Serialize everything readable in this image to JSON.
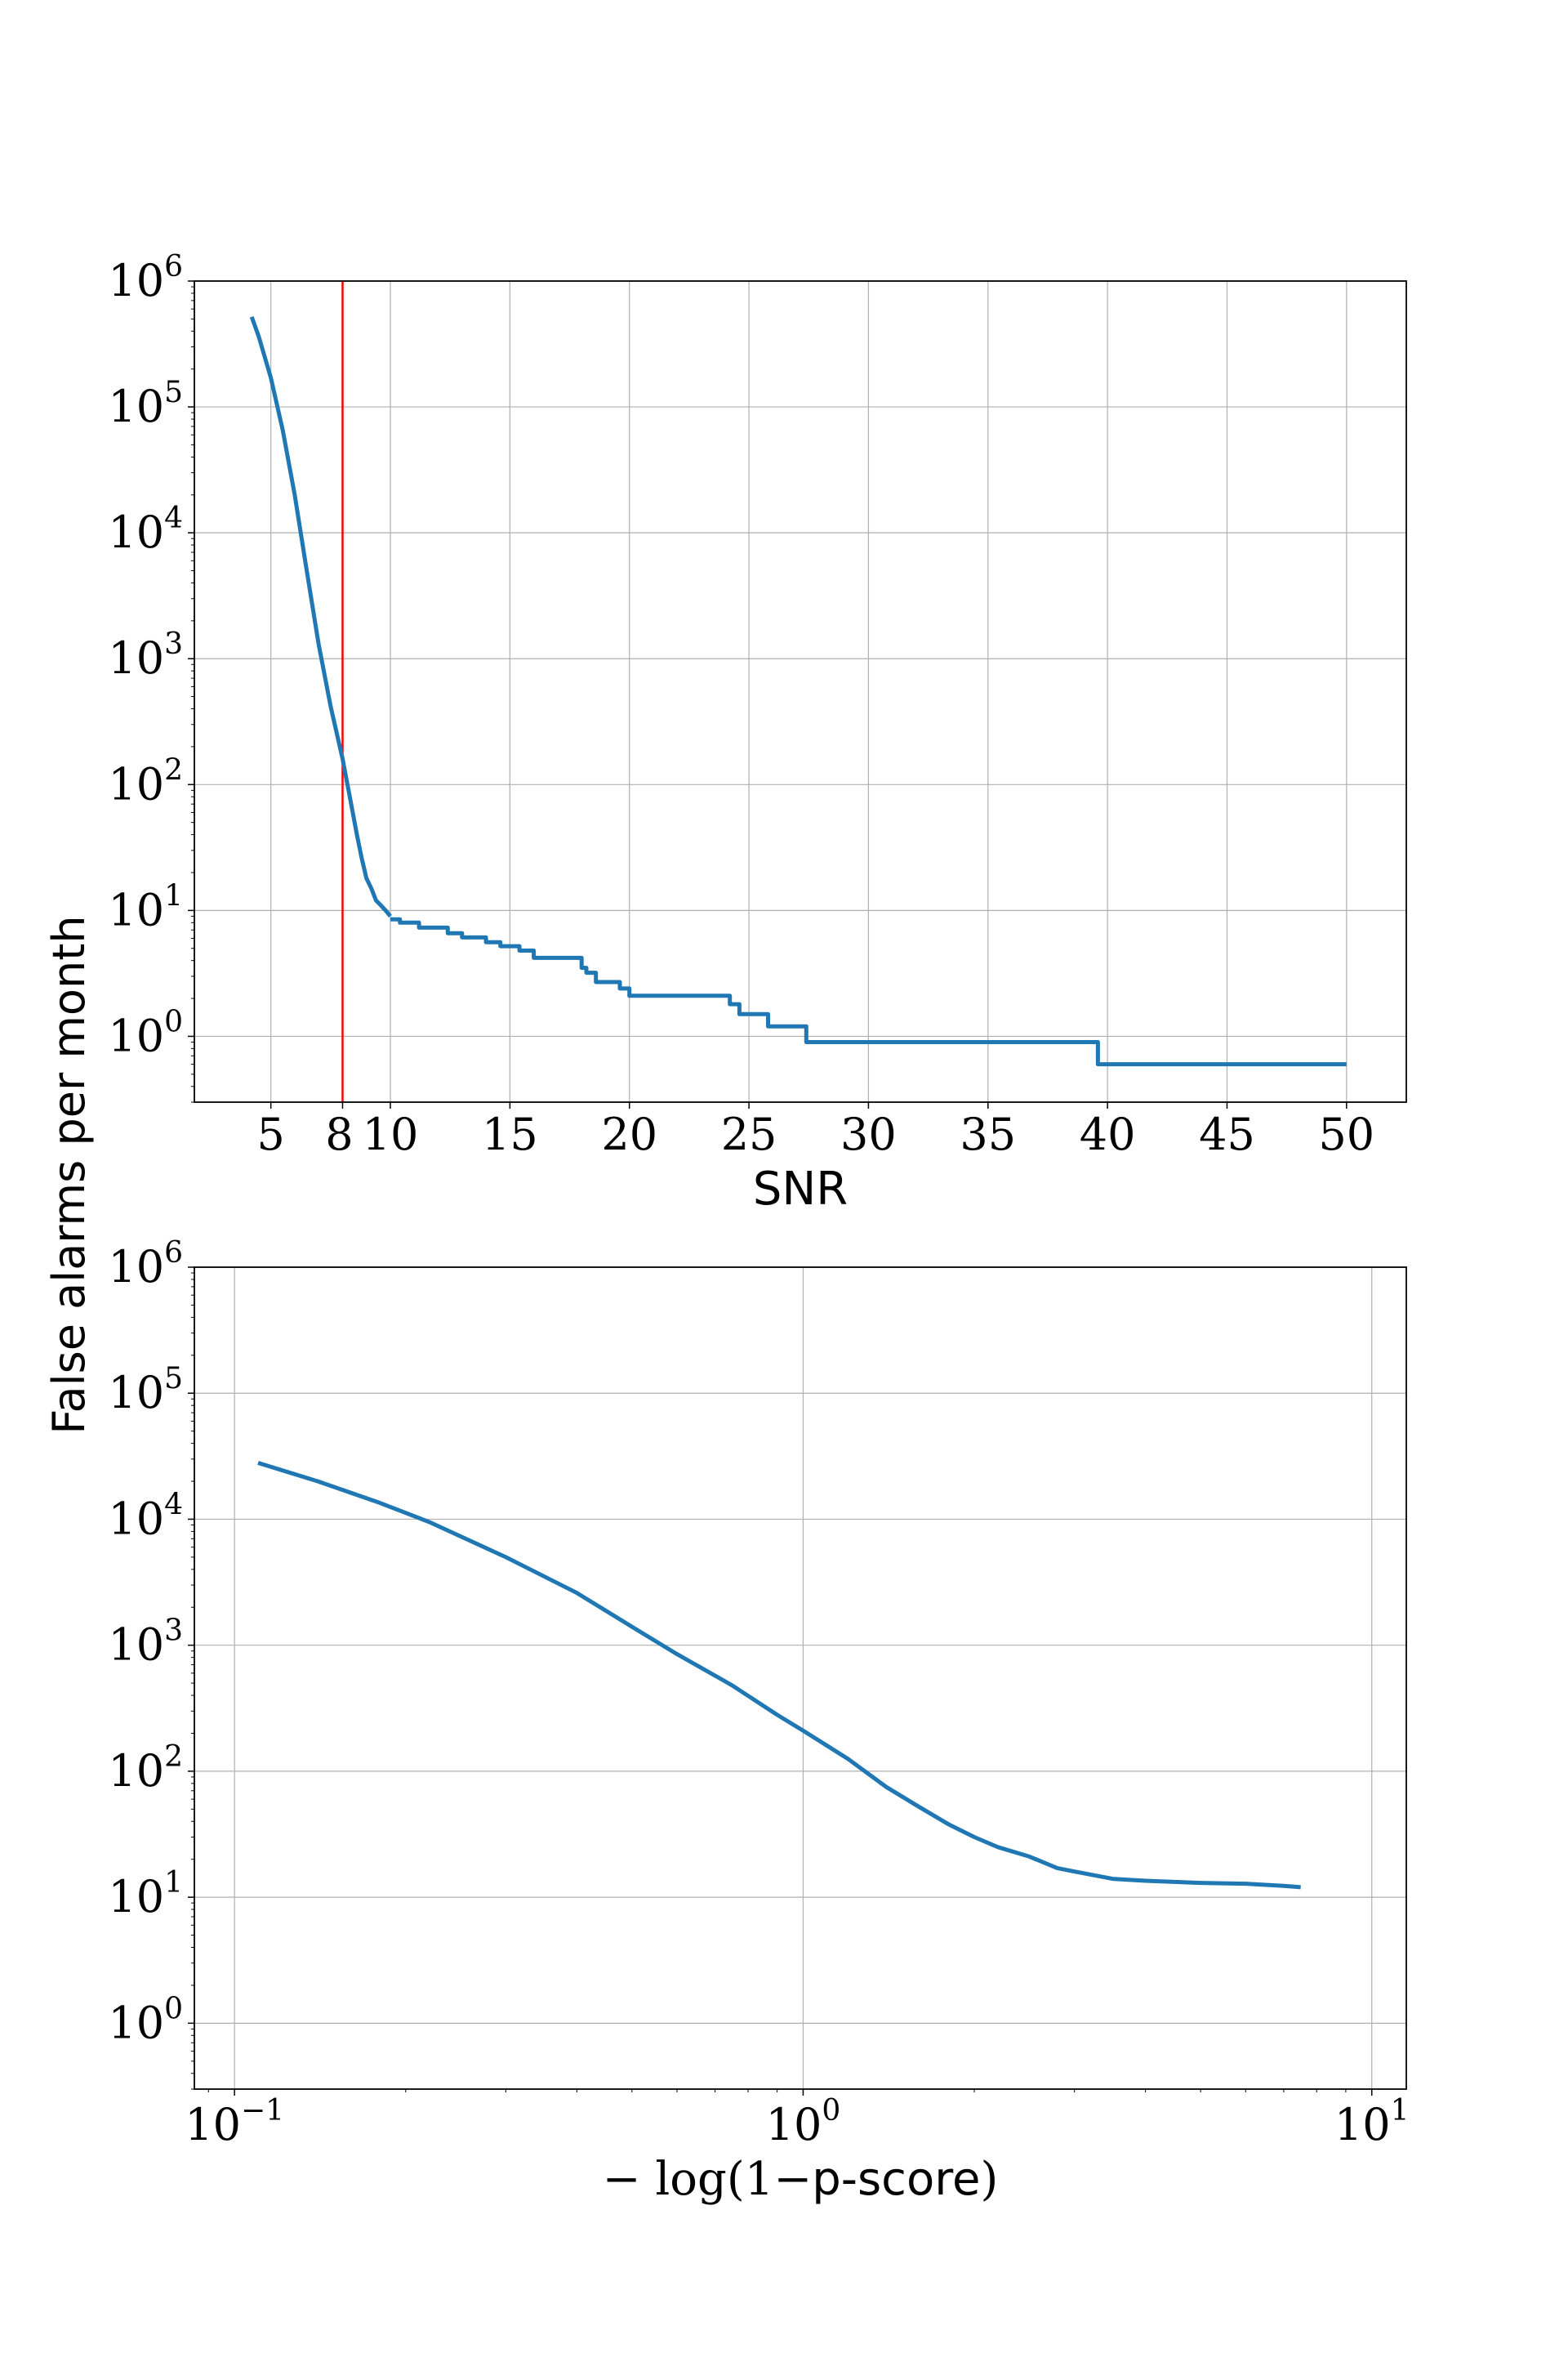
{
  "figure": {
    "ylabel": "False alarms per month",
    "series_color": "#1f77b4",
    "marker_color": "#ff0000",
    "grid_color": "#b0b0b0"
  },
  "chart_data": [
    {
      "type": "line",
      "xlabel": "SNR",
      "ylabel": "False alarms per month",
      "xscale": "linear",
      "yscale": "log",
      "xlim": [
        1.8,
        52.5
      ],
      "ylim": [
        0.3,
        1000000
      ],
      "grid": true,
      "xticks": [
        5,
        8,
        10,
        15,
        20,
        25,
        30,
        35,
        40,
        45,
        50
      ],
      "xtick_labels": [
        "5",
        "8",
        "10",
        "15",
        "20",
        "25",
        "30",
        "35",
        "40",
        "45",
        "50"
      ],
      "ytick_mantissas": [
        "10",
        "10",
        "10",
        "10",
        "10",
        "10",
        "10"
      ],
      "ytick_exponents": [
        "0",
        "1",
        "2",
        "3",
        "4",
        "5",
        "6"
      ],
      "threshold_x": 8,
      "series": [
        {
          "step": false,
          "x": [
            4.2,
            4.5,
            5.0,
            5.5,
            6.0,
            6.5,
            7.0,
            7.5,
            8.0,
            8.3,
            8.6,
            8.8,
            9.0,
            9.2,
            9.4,
            9.6,
            9.8,
            10.0
          ],
          "y": [
            520000,
            360000,
            170000,
            65000,
            20000,
            5000,
            1300,
            420,
            160,
            80,
            40,
            26,
            18,
            15,
            12,
            11,
            10,
            9
          ]
        },
        {
          "step": true,
          "x": [
            10.0,
            10.4,
            11.2,
            12.4,
            13.0,
            14.0,
            14.6,
            15.4,
            16.0,
            18.0,
            18.2,
            18.6,
            19.6,
            20.0,
            24.2,
            24.6,
            25.8,
            27.4,
            39.6,
            50.0
          ],
          "y": [
            8.5,
            8.0,
            7.3,
            6.6,
            6.1,
            5.6,
            5.2,
            4.8,
            4.2,
            3.5,
            3.2,
            2.7,
            2.4,
            2.1,
            1.8,
            1.5,
            1.2,
            0.9,
            0.6,
            0.6
          ]
        }
      ]
    },
    {
      "type": "line",
      "xlabel": "−log(1−p-score)",
      "xlabel_parts": [
        "− log(1−",
        "p-score",
        ")"
      ],
      "ylabel": "False alarms per month",
      "xscale": "log",
      "yscale": "log",
      "xlim": [
        0.085,
        11.5
      ],
      "ylim": [
        0.3,
        1000000
      ],
      "grid": true,
      "xtick_mantissas": [
        "10",
        "10",
        "10"
      ],
      "xtick_exponents": [
        "−1",
        "0",
        "1"
      ],
      "xtick_values": [
        0.1,
        1,
        10
      ],
      "ytick_mantissas": [
        "10",
        "10",
        "10",
        "10",
        "10",
        "10",
        "10"
      ],
      "ytick_exponents": [
        "0",
        "1",
        "2",
        "3",
        "4",
        "5",
        "6"
      ],
      "series": [
        {
          "x": [
            0.11,
            0.14,
            0.18,
            0.22,
            0.3,
            0.4,
            0.5,
            0.6,
            0.75,
            0.9,
            1.0,
            1.2,
            1.4,
            1.6,
            1.8,
            2.0,
            2.2,
            2.5,
            2.8,
            3.0,
            3.5,
            4.0,
            5.0,
            6.0,
            7.0,
            7.5
          ],
          "y": [
            28000,
            20000,
            13500,
            9500,
            5000,
            2600,
            1400,
            850,
            480,
            280,
            210,
            125,
            75,
            52,
            38,
            30,
            25,
            21,
            17,
            16,
            14,
            13.5,
            13,
            12.8,
            12.3,
            12
          ]
        }
      ]
    }
  ]
}
